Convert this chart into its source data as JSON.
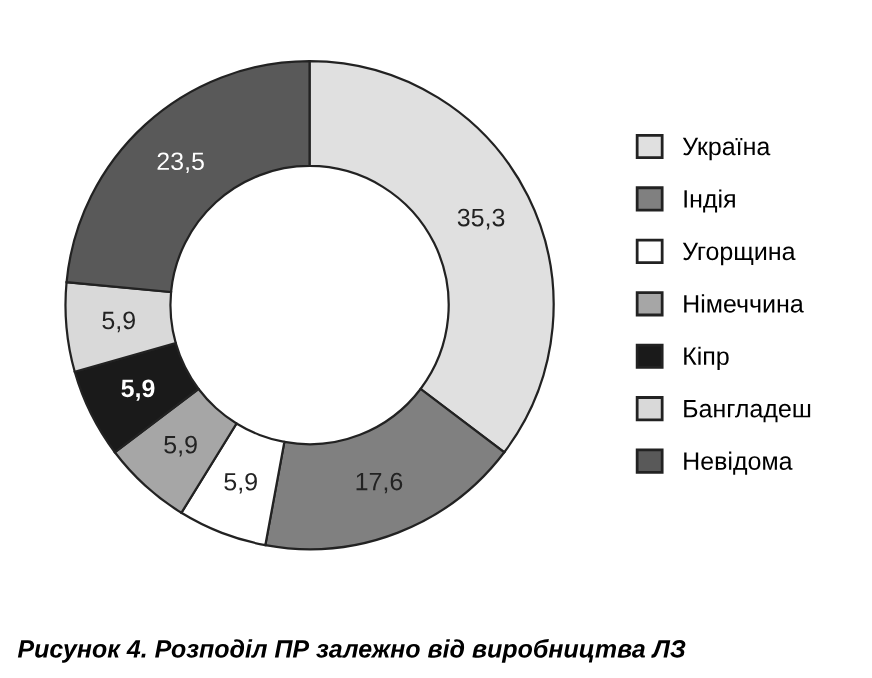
{
  "chart_data": {
    "type": "donut",
    "title": "Рисунок 4. Розподіл ПР залежно від виробництва ЛЗ",
    "categories": [
      "Україна",
      "Індія",
      "Угорщина",
      "Німеччина",
      "Кіпр",
      "Бангладеш",
      "Невідома"
    ],
    "values": [
      35.3,
      17.6,
      5.9,
      5.9,
      5.9,
      5.9,
      23.5
    ],
    "value_labels": [
      "35,3",
      "17,6",
      "5,9",
      "5,9",
      "5,9",
      "5,9",
      "23,5"
    ],
    "colors": [
      "#e0e0e0",
      "#808080",
      "#ffffff",
      "#a6a6a6",
      "#1a1a1a",
      "#d9d9d9",
      "#595959"
    ],
    "legend": "right"
  }
}
